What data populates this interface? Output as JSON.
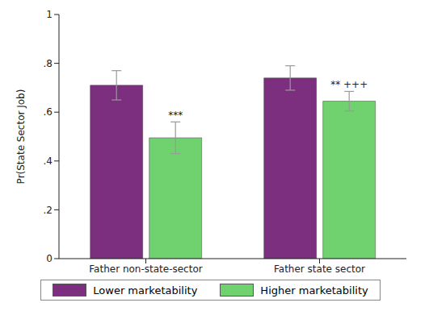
{
  "chart_data": {
    "type": "bar",
    "y_label": "Pr(State Sector Job)",
    "categories": [
      "Father non-state-sector",
      "Father state sector"
    ],
    "series": [
      {
        "name": "Lower marketability",
        "color": "#7b2f7e",
        "values": [
          0.71,
          0.74
        ],
        "errors": [
          0.06,
          0.05
        ]
      },
      {
        "name": "Higher marketability",
        "color": "#6fd26e",
        "values": [
          0.495,
          0.645
        ],
        "errors": [
          0.065,
          0.04
        ],
        "annotations": [
          "***",
          "** +++"
        ]
      }
    ],
    "ylim": [
      0,
      1
    ],
    "yticks": [
      0,
      {
        "value": 0.2,
        "label": ".2"
      },
      {
        "value": 0.4,
        "label": ".4"
      },
      {
        "value": 0.6,
        "label": ".6"
      },
      {
        "value": 0.8,
        "label": ".8"
      },
      1
    ],
    "grid": false,
    "legend": "bottom"
  }
}
